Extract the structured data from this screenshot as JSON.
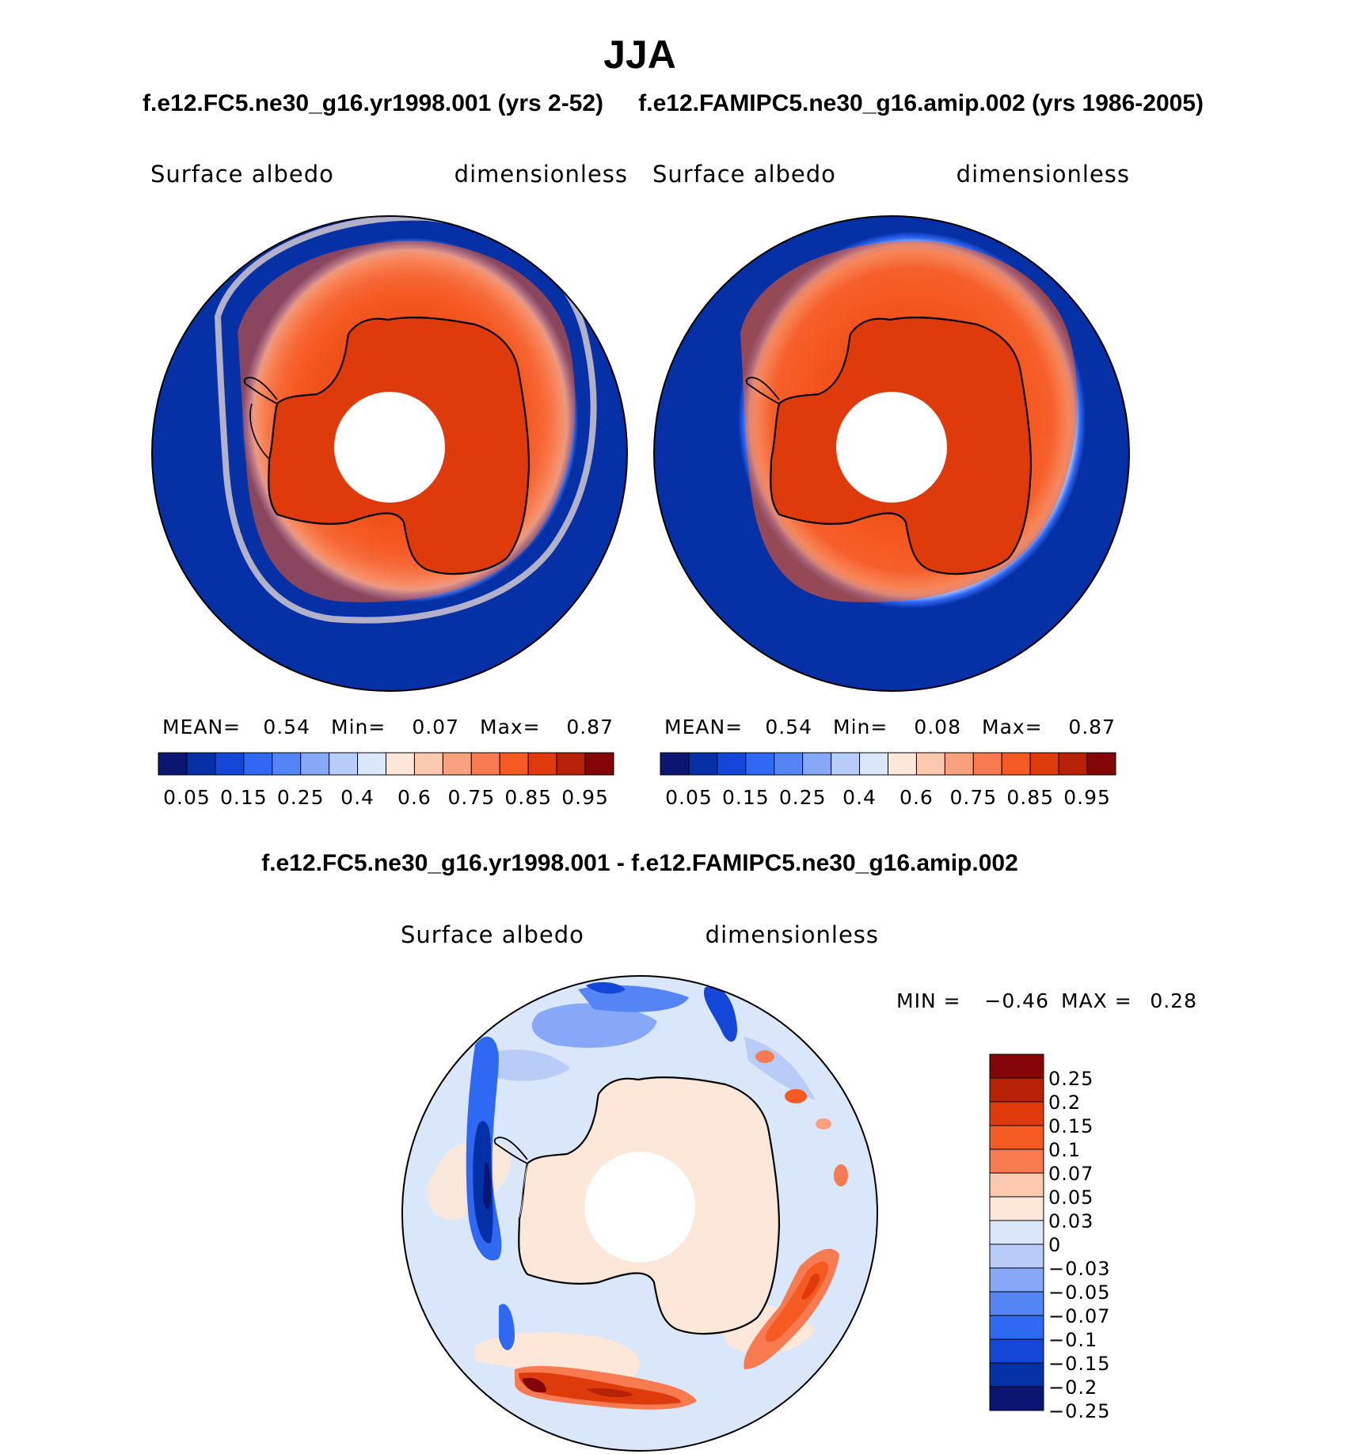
{
  "season": "JJA",
  "panel_left": {
    "case_title": "f.e12.FC5.ne30_g16.yr1998.001 (yrs 2-52)",
    "variable": "Surface albedo",
    "units": "dimensionless",
    "stats": {
      "mean_label": "MEAN=",
      "mean": "0.54",
      "min_label": "Min=",
      "min": "0.07",
      "max_label": "Max=",
      "max": "0.87"
    }
  },
  "panel_right": {
    "case_title": "f.e12.FAMIPC5.ne30_g16.amip.002 (yrs 1986-2005)",
    "variable": "Surface albedo",
    "units": "dimensionless",
    "stats": {
      "mean_label": "MEAN=",
      "mean": "0.54",
      "min_label": "Min=",
      "min": "0.08",
      "max_label": "Max=",
      "max": "0.87"
    }
  },
  "colorbar_abs": {
    "colors": [
      "#0a1672",
      "#0630a6",
      "#1446d8",
      "#2f68f3",
      "#5585f4",
      "#86a8f6",
      "#b8ccf8",
      "#dae7fb",
      "#fde7d8",
      "#fcc8b0",
      "#f9a07e",
      "#f77a50",
      "#f55a22",
      "#de3a0c",
      "#b72105",
      "#840608"
    ],
    "tick_labels": [
      "0.05",
      "0.15",
      "0.25",
      "0.4",
      "0.6",
      "0.75",
      "0.85",
      "0.95"
    ]
  },
  "panel_diff": {
    "title": "f.e12.FC5.ne30_g16.yr1998.001 - f.e12.FAMIPC5.ne30_g16.amip.002",
    "variable": "Surface albedo",
    "units": "dimensionless",
    "min_label": "MIN =",
    "min": "−0.46",
    "max_label": "MAX =",
    "max": "0.28"
  },
  "colorbar_diff": {
    "colors": [
      "#840608",
      "#b72105",
      "#de3a0c",
      "#f55a22",
      "#f77a50",
      "#fcc8b0",
      "#fde7d8",
      "#dae7fb",
      "#b8ccf8",
      "#86a8f6",
      "#5585f4",
      "#2f68f3",
      "#1446d8",
      "#0630a6",
      "#0a1672"
    ],
    "tick_labels": [
      "0.25",
      "0.2",
      "0.15",
      "0.1",
      "0.07",
      "0.05",
      "0.03",
      "0",
      "−0.03",
      "−0.05",
      "−0.07",
      "−0.1",
      "−0.15",
      "−0.2",
      "−0.25"
    ]
  }
}
